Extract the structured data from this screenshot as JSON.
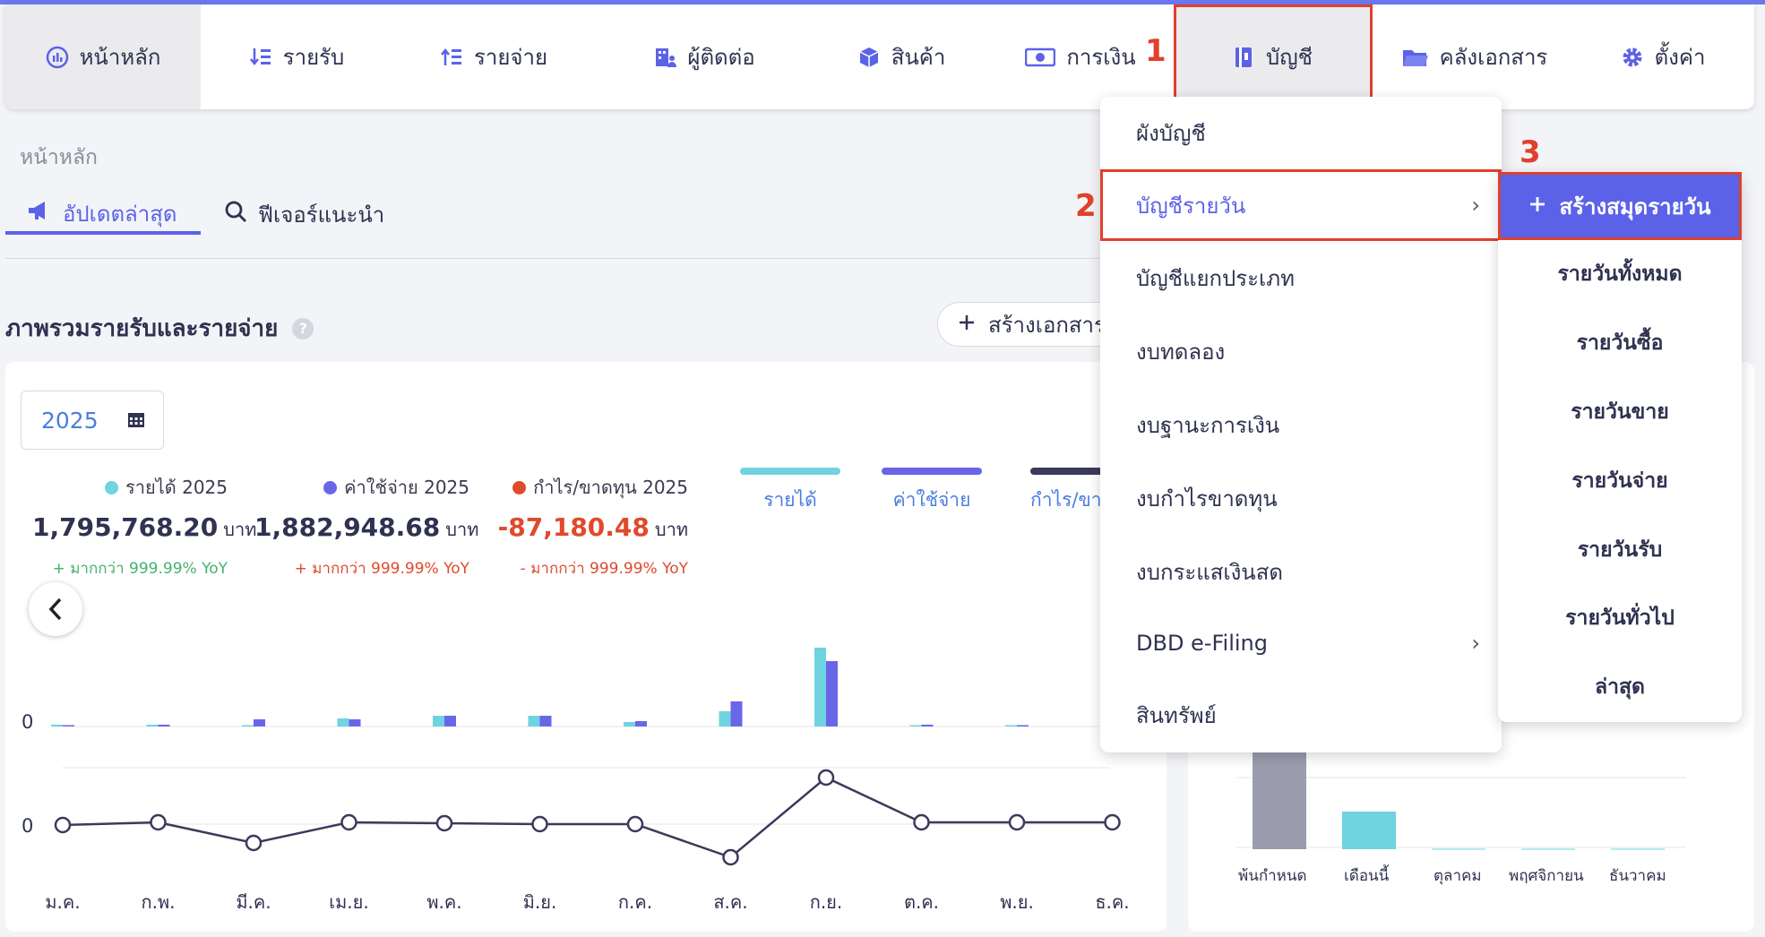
{
  "nav": {
    "items": [
      {
        "label": "หน้าหลัก",
        "icon": "dashboard-icon"
      },
      {
        "label": "รายรับ",
        "icon": "income-icon"
      },
      {
        "label": "รายจ่าย",
        "icon": "expense-icon"
      },
      {
        "label": "ผู้ติดต่อ",
        "icon": "contacts-icon"
      },
      {
        "label": "สินค้า",
        "icon": "box-icon"
      },
      {
        "label": "การเงิน",
        "icon": "money-icon"
      },
      {
        "label": "บัญชี",
        "icon": "ledger-icon"
      },
      {
        "label": "คลังเอกสาร",
        "icon": "folder-icon"
      },
      {
        "label": "ตั้งค่า",
        "icon": "gear-icon"
      }
    ]
  },
  "steps": {
    "one": "1",
    "two": "2",
    "three": "3"
  },
  "breadcrumb": "หน้าหลัก",
  "tabs": {
    "updates": "อัปเดตล่าสุด",
    "features": "ฟีเจอร์แนะนำ"
  },
  "section": {
    "title": "ภาพรวมรายรับและรายจ่าย",
    "help": "?",
    "create_doc": "สร้างเอกสาร"
  },
  "year": "2025",
  "stats": {
    "income": {
      "label": "รายได้ 2025",
      "value": "1,795,768.20",
      "unit": "บาท",
      "yoy": "+ มากกว่า 999.99% YoY"
    },
    "expense": {
      "label": "ค่าใช้จ่าย 2025",
      "value": "1,882,948.68",
      "unit": "บาท",
      "yoy": "+ มากกว่า 999.99% YoY"
    },
    "profit": {
      "label": "กำไร/ขาดทุน 2025",
      "value": "-87,180.48",
      "unit": "บาท",
      "yoy": "- มากกว่า 999.99% YoY"
    }
  },
  "legend": {
    "income": "รายได้",
    "expense": "ค่าใช้จ่าย",
    "profit": "กำไร/ขาดทุน"
  },
  "colors": {
    "income": "#6fd3e0",
    "expense": "#6a66e8",
    "profit": "#3b3a5c",
    "accent": "#5b62e8",
    "highlight": "#e0402c",
    "positive": "#45b36b",
    "negative": "#e04a2c"
  },
  "chart_data": {
    "type": "bar",
    "categories": [
      "ม.ค.",
      "ก.พ.",
      "มี.ค.",
      "เม.ย.",
      "พ.ค.",
      "มิ.ย.",
      "ก.ค.",
      "ส.ค.",
      "ก.ย.",
      "ต.ค.",
      "พ.ย.",
      "ธ.ค."
    ],
    "zero_label": "0",
    "series": [
      {
        "name": "รายได้",
        "values": [
          2,
          2,
          0,
          9,
          12,
          12,
          5,
          17,
          88,
          1,
          1,
          1
        ]
      },
      {
        "name": "ค่าใช้จ่าย",
        "values": [
          1,
          2,
          8,
          8,
          12,
          12,
          6,
          28,
          73,
          2,
          1,
          0
        ]
      },
      {
        "name": "กำไร/ขาดทุน",
        "values": [
          1,
          0,
          -23,
          0,
          -1,
          -2,
          -2,
          -39,
          50,
          0,
          0,
          0
        ]
      }
    ]
  },
  "menu_account": {
    "items": [
      "ผังบัญชี",
      "บัญชีรายวัน",
      "บัญชีแยกประเภท",
      "งบทดลอง",
      "งบฐานะการเงิน",
      "งบกำไรขาดทุน",
      "งบกระแสเงินสด",
      "DBD e-Filing",
      "สินทรัพย์"
    ],
    "chevron": "›"
  },
  "menu_journal": {
    "create": "สร้างสมุดรายวัน",
    "items": [
      "รายวันทั้งหมด",
      "รายวันซื้อ",
      "รายวันขาย",
      "รายวันจ่าย",
      "รายวันรับ",
      "รายวันทั่วไป",
      "ล่าสุด"
    ]
  },
  "right_chart": {
    "labels": [
      "พ้นกำหนด",
      "เดือนนี้",
      "ตุลาคม",
      "พฤศจิกายน",
      "ธันวาคม"
    ]
  }
}
